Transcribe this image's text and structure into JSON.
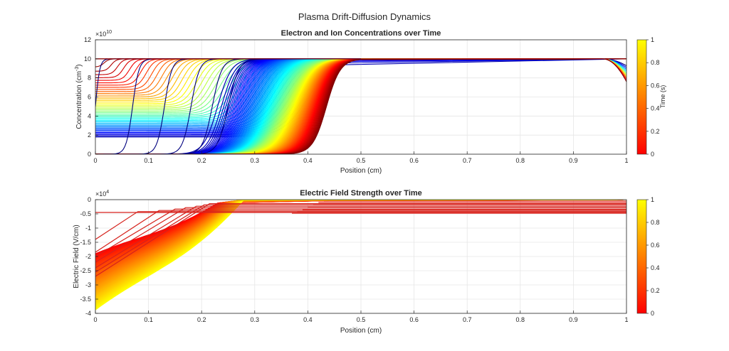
{
  "figure": {
    "suptitle": "Plasma Drift-Diffusion Dynamics"
  },
  "chart_data": [
    {
      "type": "line",
      "title": "Electron and Ion Concentrations over Time",
      "xlabel": "Position (cm)",
      "ylabel": "Concentration (cm^-3)",
      "ylabel_base": "Concentration (cm",
      "ylabel_sup": "-3",
      "ylabel_end": ")",
      "xlim": [
        0,
        1
      ],
      "ylim": [
        0,
        12
      ],
      "y_multiplier": "×10",
      "y_multiplier_exp": "10",
      "xticks": [
        0,
        0.1,
        0.2,
        0.3,
        0.4,
        0.5,
        0.6,
        0.7,
        0.8,
        0.9,
        1
      ],
      "xtick_labels": [
        "0",
        "0.1",
        "0.2",
        "0.3",
        "0.4",
        "0.5",
        "0.6",
        "0.7",
        "0.8",
        "0.9",
        "1"
      ],
      "yticks": [
        0,
        2,
        4,
        6,
        8,
        10,
        12
      ],
      "ytick_labels": [
        "0",
        "2",
        "4",
        "6",
        "8",
        "10",
        "12"
      ],
      "grid": true,
      "colormap": "jet",
      "series": [
        {
          "kind": "electron",
          "t": 0.0,
          "x0": 0.0,
          "width": 0.004,
          "floor": 0.0
        },
        {
          "kind": "electron",
          "t": 0.05,
          "x0": 0.07,
          "width": 0.006,
          "floor": 0.0
        },
        {
          "kind": "electron",
          "t": 0.1,
          "x0": 0.13,
          "width": 0.007,
          "floor": 0.0
        },
        {
          "kind": "electron",
          "t": 0.15,
          "x0": 0.18,
          "width": 0.008,
          "floor": 0.0
        },
        {
          "kind": "electron",
          "t": 0.2,
          "x0": 0.22,
          "width": 0.009,
          "floor": 0.0
        },
        {
          "kind": "electron",
          "t": 0.25,
          "x0": 0.25,
          "width": 0.01,
          "floor": 0.0
        },
        {
          "kind": "electron",
          "t": 0.3,
          "x0": 0.28,
          "width": 0.011,
          "floor": 0.0
        },
        {
          "kind": "electron",
          "t": 0.35,
          "x0": 0.305,
          "width": 0.012,
          "floor": 0.0
        },
        {
          "kind": "electron",
          "t": 0.4,
          "x0": 0.325,
          "width": 0.012,
          "floor": 0.0
        },
        {
          "kind": "electron",
          "t": 0.45,
          "x0": 0.345,
          "width": 0.013,
          "floor": 0.0
        },
        {
          "kind": "electron",
          "t": 0.5,
          "x0": 0.36,
          "width": 0.013,
          "floor": 0.0
        },
        {
          "kind": "electron",
          "t": 0.55,
          "x0": 0.373,
          "width": 0.013,
          "floor": 0.0
        },
        {
          "kind": "electron",
          "t": 0.6,
          "x0": 0.385,
          "width": 0.012,
          "floor": 0.0
        },
        {
          "kind": "electron",
          "t": 0.65,
          "x0": 0.395,
          "width": 0.012,
          "floor": 0.0
        },
        {
          "kind": "electron",
          "t": 0.7,
          "x0": 0.403,
          "width": 0.011,
          "floor": 0.0
        },
        {
          "kind": "electron",
          "t": 0.75,
          "x0": 0.41,
          "width": 0.01,
          "floor": 0.0
        },
        {
          "kind": "electron",
          "t": 0.8,
          "x0": 0.416,
          "width": 0.01,
          "floor": 0.0
        },
        {
          "kind": "electron",
          "t": 0.85,
          "x0": 0.421,
          "width": 0.009,
          "floor": 0.0
        },
        {
          "kind": "electron",
          "t": 0.9,
          "x0": 0.426,
          "width": 0.009,
          "floor": 0.0
        },
        {
          "kind": "electron",
          "t": 0.95,
          "x0": 0.43,
          "width": 0.009,
          "floor": 0.0
        },
        {
          "kind": "electron",
          "t": 1.0,
          "x0": 0.434,
          "width": 0.009,
          "floor": 0.0
        }
      ],
      "ion_front": {
        "x_start": 0.0,
        "x_end": 0.4,
        "floor_start": 10.0,
        "floor_end": 1.8,
        "count": 20
      },
      "right_dip": {
        "x_start": 0.955,
        "min_value": 7.6
      }
    },
    {
      "type": "line",
      "title": "Electric Field Strength over Time",
      "xlabel": "Position (cm)",
      "ylabel": "Electric Field (V/cm)",
      "xlim": [
        0,
        1
      ],
      "ylim": [
        -4,
        0
      ],
      "y_multiplier": "×10",
      "y_multiplier_exp": "4",
      "xticks": [
        0,
        0.1,
        0.2,
        0.3,
        0.4,
        0.5,
        0.6,
        0.7,
        0.8,
        0.9,
        1
      ],
      "xtick_labels": [
        "0",
        "0.1",
        "0.2",
        "0.3",
        "0.4",
        "0.5",
        "0.6",
        "0.7",
        "0.8",
        "0.9",
        "1"
      ],
      "yticks": [
        -4,
        -3.5,
        -3,
        -2.5,
        -2,
        -1.5,
        -1,
        -0.5,
        0
      ],
      "ytick_labels": [
        "-4",
        "-3.5",
        "-3",
        "-2.5",
        "-2",
        "-1.5",
        "-1",
        "-0.5",
        "0"
      ],
      "grid": true,
      "colormap": "autumn",
      "series": [
        {
          "t": 0.0,
          "e0": -0.45,
          "x_knee": 0.0,
          "tail": -0.45
        },
        {
          "t": 0.04,
          "e0": -1.4,
          "x_knee": 0.08,
          "tail": -0.42
        },
        {
          "t": 0.08,
          "e0": -1.85,
          "x_knee": 0.12,
          "tail": -0.38
        },
        {
          "t": 0.12,
          "e0": -2.0,
          "x_knee": 0.15,
          "tail": -0.33
        },
        {
          "t": 0.16,
          "e0": -2.2,
          "x_knee": 0.17,
          "tail": -0.28
        },
        {
          "t": 0.2,
          "e0": -2.4,
          "x_knee": 0.19,
          "tail": -0.23
        },
        {
          "t": 0.25,
          "e0": -2.55,
          "x_knee": 0.205,
          "tail": -0.18
        },
        {
          "t": 0.3,
          "e0": -2.7,
          "x_knee": 0.215,
          "tail": -0.14
        },
        {
          "t": 0.35,
          "e0": -2.85,
          "x_knee": 0.225,
          "tail": -0.1
        },
        {
          "t": 0.4,
          "e0": -3.0,
          "x_knee": 0.235,
          "tail": -0.07
        },
        {
          "t": 0.45,
          "e0": -3.1,
          "x_knee": 0.24,
          "tail": -0.05
        },
        {
          "t": 0.5,
          "e0": -3.2,
          "x_knee": 0.245,
          "tail": -0.03
        },
        {
          "t": 0.55,
          "e0": -3.3,
          "x_knee": 0.25,
          "tail": -0.02
        },
        {
          "t": 0.6,
          "e0": -3.4,
          "x_knee": 0.255,
          "tail": -0.01
        },
        {
          "t": 0.65,
          "e0": -3.5,
          "x_knee": 0.26,
          "tail": 0.0
        },
        {
          "t": 0.7,
          "e0": -3.6,
          "x_knee": 0.265,
          "tail": 0.0
        },
        {
          "t": 0.75,
          "e0": -3.68,
          "x_knee": 0.27,
          "tail": 0.0
        },
        {
          "t": 0.8,
          "e0": -3.75,
          "x_knee": 0.272,
          "tail": 0.0
        },
        {
          "t": 0.85,
          "e0": -3.8,
          "x_knee": 0.274,
          "tail": 0.0
        },
        {
          "t": 0.9,
          "e0": -3.85,
          "x_knee": 0.276,
          "tail": 0.0
        },
        {
          "t": 1.0,
          "e0": -3.88,
          "x_knee": 0.278,
          "tail": 0.0
        }
      ],
      "flat_lines": [
        -0.05,
        -0.1,
        -0.18,
        -0.27,
        -0.35,
        -0.42,
        -0.48
      ],
      "flat_start": [
        0.43,
        0.42,
        0.41,
        0.4,
        0.39,
        0.38,
        0.37
      ]
    }
  ],
  "colorbars": [
    {
      "ticks": [
        0,
        0.2,
        0.4,
        0.6,
        0.8,
        1
      ],
      "tick_labels": [
        "0",
        "0.2",
        "0.4",
        "0.6",
        "0.8",
        "1"
      ],
      "label": "Time (s)",
      "colormap": "autumn"
    },
    {
      "ticks": [
        0,
        0.2,
        0.4,
        0.6,
        0.8,
        1
      ],
      "tick_labels": [
        "0",
        "0.2",
        "0.4",
        "0.6",
        "0.8",
        "1"
      ],
      "label": "",
      "colormap": "autumn"
    }
  ]
}
